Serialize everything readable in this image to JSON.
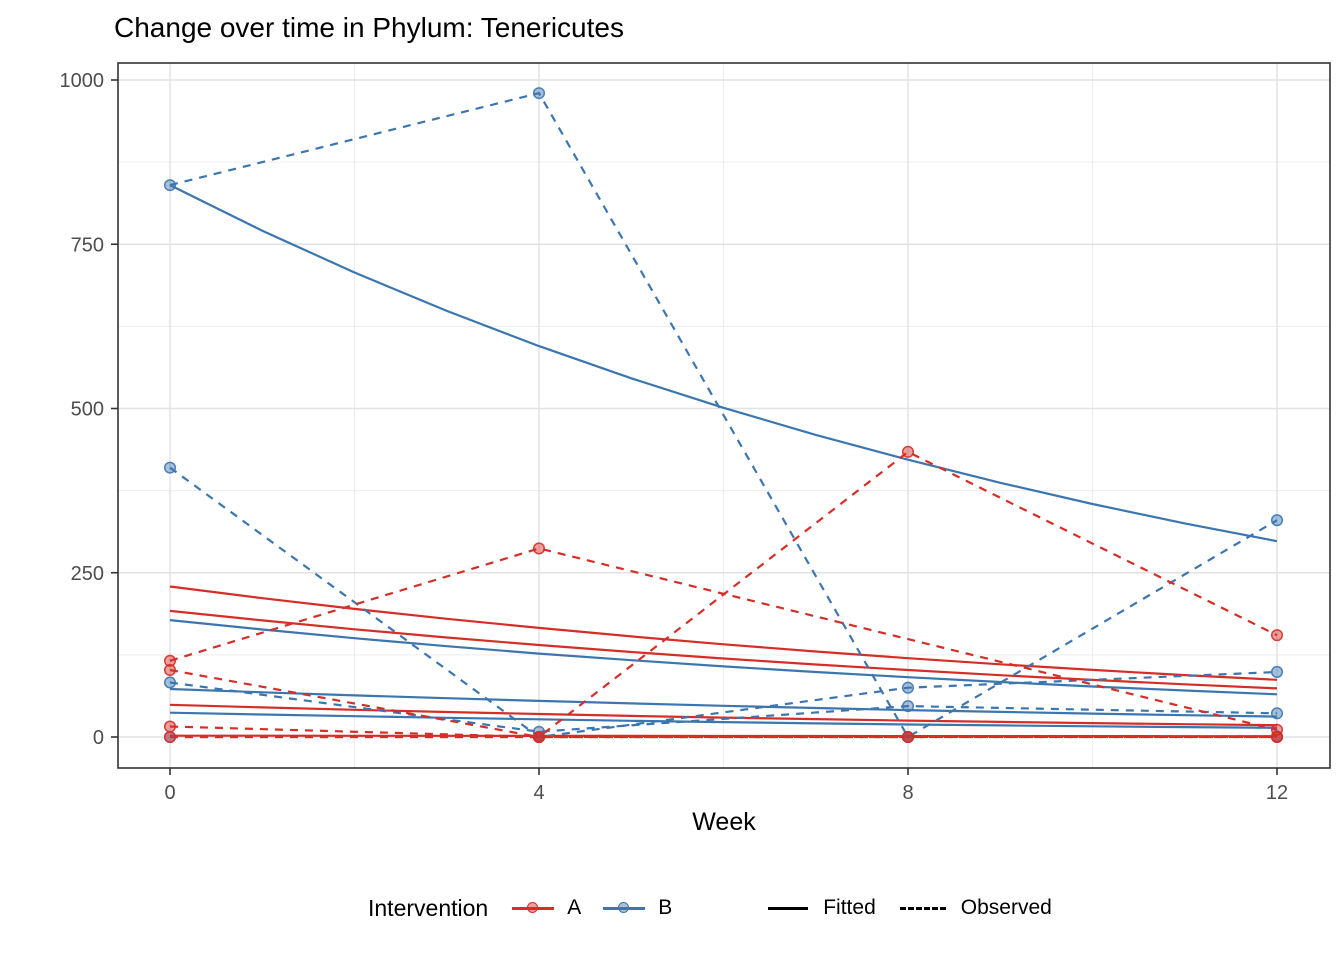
{
  "title": "Change over time in Phylum: Tenericutes",
  "colors": {
    "A": "#D62E27",
    "B": "#3C76B0",
    "axis_text": "#4D4D4D",
    "panel_border": "#333333",
    "grid_major": "#E2E2E2",
    "grid_minor": "#EDEDED"
  },
  "axes": {
    "x": {
      "label": "Week",
      "ticks": [
        0,
        4,
        8,
        12
      ],
      "minor": [
        2,
        6,
        10
      ]
    },
    "y": {
      "ticks": [
        0,
        250,
        500,
        750,
        1000
      ],
      "minor": [
        125,
        375,
        625,
        875
      ],
      "range": [
        0,
        1026
      ]
    }
  },
  "legend": {
    "title": "Intervention",
    "groups": [
      {
        "label": "A",
        "color_key": "A"
      },
      {
        "label": "B",
        "color_key": "B"
      }
    ],
    "linetypes": [
      {
        "label": "Fitted",
        "style": "solid"
      },
      {
        "label": "Observed",
        "style": "dashed"
      }
    ]
  },
  "chart_data": {
    "type": "line",
    "title": "Change over time in Phylum: Tenericutes",
    "xlabel": "Week",
    "ylabel": "",
    "x_weeks": [
      0,
      4,
      8,
      12
    ],
    "ylim": [
      0,
      1026
    ],
    "grid": true,
    "legend_position": "bottom",
    "series": [
      {
        "name": "B-fitted-1",
        "group": "B",
        "style": "fitted",
        "values": [
          840,
          595,
          422,
          298
        ]
      },
      {
        "name": "B-fitted-2",
        "group": "B",
        "style": "fitted",
        "values": [
          178,
          127,
          91,
          65
        ]
      },
      {
        "name": "B-fitted-3",
        "group": "B",
        "style": "fitted",
        "values": [
          73,
          55,
          41,
          31
        ]
      },
      {
        "name": "B-fitted-4",
        "group": "B",
        "style": "fitted",
        "values": [
          37,
          27,
          19,
          14
        ]
      },
      {
        "name": "A-fitted-1",
        "group": "A",
        "style": "fitted",
        "values": [
          229,
          166,
          120,
          87
        ]
      },
      {
        "name": "A-fitted-2",
        "group": "A",
        "style": "fitted",
        "values": [
          192,
          140,
          102,
          74
        ]
      },
      {
        "name": "A-fitted-3",
        "group": "A",
        "style": "fitted",
        "values": [
          49,
          35,
          25,
          18
        ]
      },
      {
        "name": "A-fitted-4",
        "group": "A",
        "style": "fitted",
        "values": [
          2,
          1.7,
          1.4,
          1.2
        ]
      },
      {
        "name": "B-observed-4",
        "group": "B",
        "style": "observed",
        "values": [
          0,
          0,
          0,
          1
        ]
      },
      {
        "name": "B-observed-1",
        "group": "B",
        "style": "observed",
        "values": [
          840,
          980,
          0,
          330
        ]
      },
      {
        "name": "B-observed-2",
        "group": "B",
        "style": "observed",
        "values": [
          410,
          0,
          75,
          99
        ]
      },
      {
        "name": "B-observed-3",
        "group": "B",
        "style": "observed",
        "values": [
          83,
          8,
          47,
          36
        ]
      },
      {
        "name": "A-observed-1",
        "group": "A",
        "style": "observed",
        "values": [
          116,
          287,
          null,
          11
        ]
      },
      {
        "name": "A-observed-2",
        "group": "A",
        "style": "observed",
        "values": [
          102,
          0,
          0,
          0
        ]
      },
      {
        "name": "A-observed-3",
        "group": "A",
        "style": "observed",
        "values": [
          16,
          0,
          434,
          155
        ]
      },
      {
        "name": "A-observed-4",
        "group": "A",
        "style": "observed",
        "values": [
          0,
          0,
          0,
          0
        ]
      }
    ]
  }
}
